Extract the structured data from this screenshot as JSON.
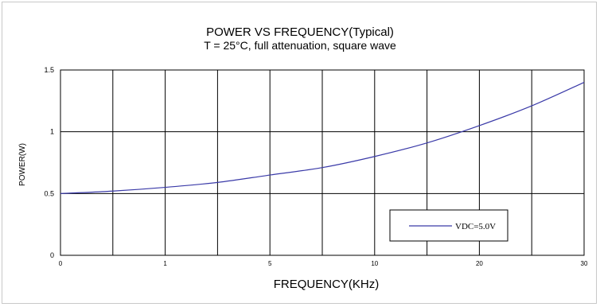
{
  "chart_data": {
    "type": "line",
    "title": "POWER VS FREQUENCY(Typical)",
    "subtitle": "T = 25°C, full attenuation, square wave",
    "xlabel": "FREQUENCY(KHz)",
    "ylabel": "POWER(W)",
    "x_ticks": [
      {
        "pos": 0,
        "label": "0"
      },
      {
        "pos": 2,
        "label": "1"
      },
      {
        "pos": 4,
        "label": "5"
      },
      {
        "pos": 6,
        "label": "10"
      },
      {
        "pos": 8,
        "label": "20"
      },
      {
        "pos": 10,
        "label": "30"
      }
    ],
    "y_ticks": [
      "0",
      "0.5",
      "1",
      "1.5"
    ],
    "ylim": [
      0,
      1.5
    ],
    "grid": true,
    "legend_position": "bottom-right",
    "series": [
      {
        "name": "VDC=5.0V",
        "color": "#3a3aa8",
        "x": [
          0,
          1,
          2,
          3,
          4,
          5,
          6,
          7,
          8,
          9,
          10
        ],
        "y": [
          0.5,
          0.52,
          0.55,
          0.59,
          0.65,
          0.71,
          0.8,
          0.91,
          1.05,
          1.21,
          1.4
        ]
      }
    ]
  }
}
